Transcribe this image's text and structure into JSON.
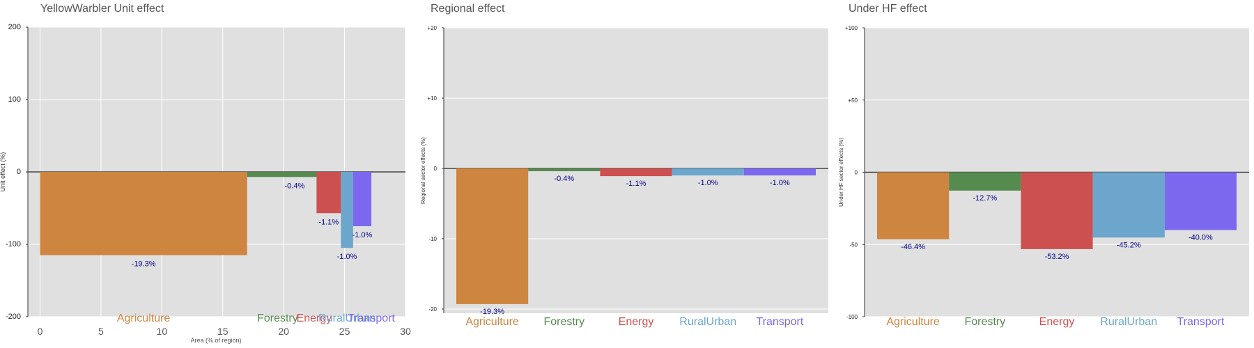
{
  "colors": {
    "Agriculture": "#cd853f",
    "Forestry": "#558b4f",
    "Energy": "#cd5050",
    "RuralUrban": "#6ca6cd",
    "Transport": "#7b68ee",
    "panel_bg": "#e0e0e0",
    "grid": "#ffffff",
    "label": "#00008b"
  },
  "chart_data": [
    {
      "id": "unit",
      "type": "bar",
      "title": "YellowWarbler Unit effect",
      "xlabel": "Area (% of region)",
      "ylabel": "Unit effect (%)",
      "xlim": [
        -1,
        30
      ],
      "ylim": [
        -200,
        200
      ],
      "yticks": [
        "200",
        "100",
        "0",
        "-100",
        "-200"
      ],
      "ytick_values": [
        200,
        100,
        0,
        -100,
        -200
      ],
      "xticks": [
        "0",
        "5",
        "10",
        "15",
        "20",
        "25",
        "30"
      ],
      "xtick_values": [
        0,
        5,
        10,
        15,
        20,
        25,
        30
      ],
      "grid": true,
      "bars": [
        {
          "sector": "Agriculture",
          "x_start": 0,
          "x_end": 17,
          "value": -115,
          "label": "-19.3%"
        },
        {
          "sector": "Forestry",
          "x_start": 17,
          "x_end": 24.8,
          "value": -7,
          "label": "-0.4%"
        },
        {
          "sector": "Energy",
          "x_start": 22.7,
          "x_end": 24.7,
          "value": -57,
          "label": "-1.1%"
        },
        {
          "sector": "RuralUrban",
          "x_start": 24.7,
          "x_end": 25.7,
          "value": -105,
          "label": "-1.0%"
        },
        {
          "sector": "Transport",
          "x_start": 25.7,
          "x_end": 27.2,
          "value": -75,
          "label": "-1.0%"
        }
      ],
      "category_labels": [
        {
          "sector": "Agriculture",
          "text": "Agriculture",
          "x": 8.5
        },
        {
          "sector": "Forestry",
          "text": "Forestry",
          "x": 19.5
        },
        {
          "sector": "Energy",
          "text": "Energy",
          "x": 22.5
        },
        {
          "sector": "RuralUrban",
          "text": "RuralUrban",
          "x": 25.2
        },
        {
          "sector": "Transport",
          "text": "Transport",
          "x": 27.2
        }
      ]
    },
    {
      "id": "regional",
      "type": "bar",
      "title": "Regional effect",
      "xlabel": "",
      "ylabel": "Regional sector effects (%)",
      "ylim": [
        -20.6,
        20
      ],
      "yticks": [
        "+20",
        "+10",
        "0",
        "-10",
        "-20"
      ],
      "ytick_values": [
        20,
        10,
        0,
        -10,
        -20
      ],
      "grid": true,
      "categories": [
        "Agriculture",
        "Forestry",
        "Energy",
        "RuralUrban",
        "Transport"
      ],
      "values": [
        -19.3,
        -0.4,
        -1.1,
        -1.0,
        -1.0
      ],
      "labels": [
        "-19.3%",
        "-0.4%",
        "-1.1%",
        "-1.0%",
        "-1.0%"
      ]
    },
    {
      "id": "hf",
      "type": "bar",
      "title": "Under HF effect",
      "xlabel": "",
      "ylabel": "Under HF sector effects (%)",
      "ylim": [
        -100,
        100
      ],
      "yticks": [
        "+100",
        "+50",
        "0",
        "-50",
        "-100"
      ],
      "ytick_values": [
        100,
        50,
        0,
        -50,
        -100
      ],
      "grid": true,
      "categories": [
        "Agriculture",
        "Forestry",
        "Energy",
        "RuralUrban",
        "Transport"
      ],
      "values": [
        -46.4,
        -12.7,
        -53.2,
        -45.2,
        -40.0
      ],
      "labels": [
        "-46.4%",
        "-12.7%",
        "-53.2%",
        "-45.2%",
        "-40.0%"
      ]
    }
  ]
}
